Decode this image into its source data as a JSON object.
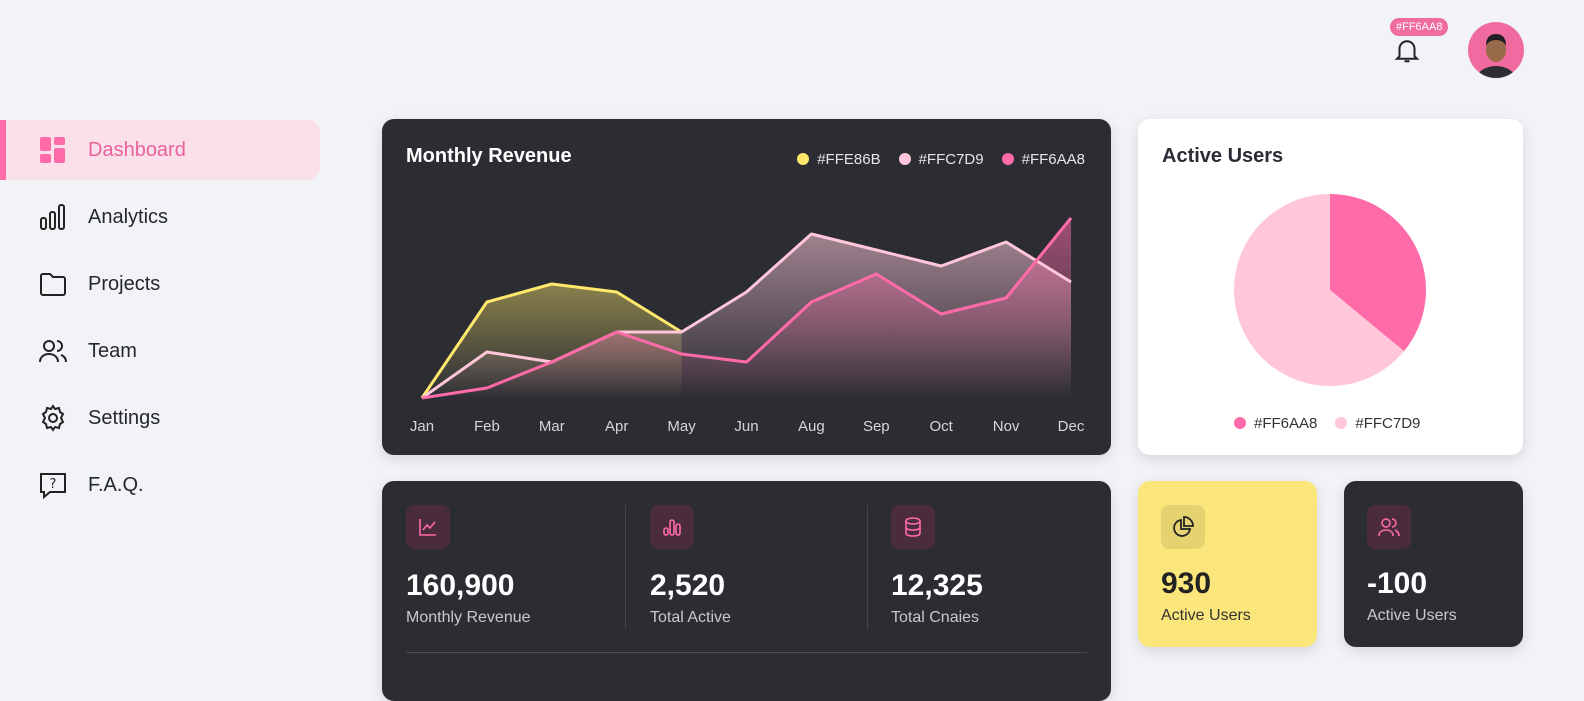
{
  "header": {
    "notification_badge": "#FF6AA8",
    "avatar_alt": "user avatar"
  },
  "sidebar": {
    "items": [
      {
        "label": "Dashboard",
        "icon": "dashboard-icon",
        "active": true
      },
      {
        "label": "Analytics",
        "icon": "bar-chart-icon"
      },
      {
        "label": "Projects",
        "icon": "folder-icon"
      },
      {
        "label": "Team",
        "icon": "users-icon"
      },
      {
        "label": "Settings",
        "icon": "gear-icon"
      },
      {
        "label": "F.A.Q.",
        "icon": "help-icon"
      }
    ]
  },
  "revenue": {
    "title": "Monthly Revenue"
  },
  "users": {
    "title": "Active Users"
  },
  "stats": [
    {
      "value": "160,900",
      "label": "Monthly Revenue",
      "icon": "line-chart-icon"
    },
    {
      "value": "2,520",
      "label": "Total Active",
      "icon": "bar-chart-icon"
    },
    {
      "value": "12,325",
      "label": "Total Cnaies",
      "icon": "database-icon"
    }
  ],
  "mini": [
    {
      "value": "930",
      "label": "Active Users",
      "icon": "pie-chart-icon"
    },
    {
      "value": "-100",
      "label": "Active Users",
      "icon": "users-icon"
    }
  ],
  "chart_data": [
    {
      "type": "area",
      "title": "Monthly Revenue",
      "categories": [
        "Jan",
        "Feb",
        "Mar",
        "Apr",
        "May",
        "Jun",
        "Aug",
        "Sep",
        "Oct",
        "Nov",
        "Dec"
      ],
      "legend_position": "top-right",
      "grid": false,
      "series": [
        {
          "name": "#FFE86B",
          "color": "#FFE86B",
          "values": [
            0,
            48,
            57,
            53,
            33,
            null,
            null,
            null,
            null,
            null,
            null
          ]
        },
        {
          "name": "#FFC7D9",
          "color": "#FFC7D9",
          "values": [
            0,
            23,
            18,
            33,
            33,
            53,
            82,
            74,
            66,
            78,
            58
          ]
        },
        {
          "name": "#FF6AA8",
          "color": "#FF6AA8",
          "values": [
            0,
            5,
            18,
            33,
            22,
            18,
            48,
            62,
            42,
            50,
            90
          ]
        }
      ],
      "ylim": [
        0,
        100
      ]
    },
    {
      "type": "pie",
      "title": "Active Users",
      "legend_position": "bottom",
      "slices": [
        {
          "name": "#FF6AA8",
          "color": "#FF6AA8",
          "value": 36
        },
        {
          "name": "#FFC7D9",
          "color": "#FFC7D9",
          "value": 64
        }
      ]
    }
  ]
}
